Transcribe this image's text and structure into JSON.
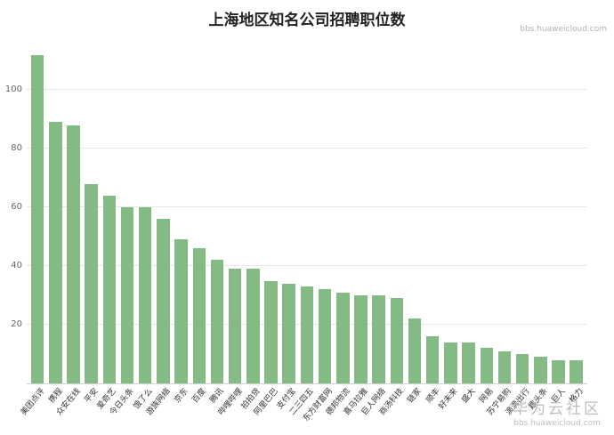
{
  "watermarks": {
    "top_right": "bbs.huaweicloud.com",
    "bottom_text": "华为云社区",
    "bottom_url": "bbs.huaweicloud.com"
  },
  "chart_data": {
    "type": "bar",
    "title": "上海地区知名公司招聘职位数",
    "xlabel": "",
    "ylabel": "",
    "categories": [
      "美团点评",
      "携程",
      "众安在线",
      "平安",
      "爱奇艺",
      "今日头条",
      "饿了么",
      "游族网络",
      "京东",
      "百度",
      "腾讯",
      "哔哩哔哩",
      "拍拍贷",
      "阿里巴巴",
      "支付宝",
      "二三四五",
      "东方财富网",
      "德邦物流",
      "喜马拉雅",
      "巨人网络",
      "商汤科技",
      "链家",
      "顺丰",
      "好未来",
      "盛大",
      "网易",
      "苏宁易购",
      "滴滴出行",
      "趣头条",
      "巨人",
      "格力"
    ],
    "values": [
      112,
      89,
      88,
      68,
      64,
      60,
      60,
      56,
      49,
      46,
      42,
      39,
      39,
      35,
      34,
      33,
      32,
      31,
      30,
      30,
      29,
      22,
      16,
      14,
      14,
      12,
      11,
      10,
      9,
      8,
      8
    ],
    "ylim": [
      0,
      114
    ],
    "yticks": [
      20,
      40,
      60,
      80,
      100
    ],
    "grid": true,
    "legend": "none",
    "bar_color": "#84ba84",
    "gridline_color": "#e6e6e6"
  }
}
